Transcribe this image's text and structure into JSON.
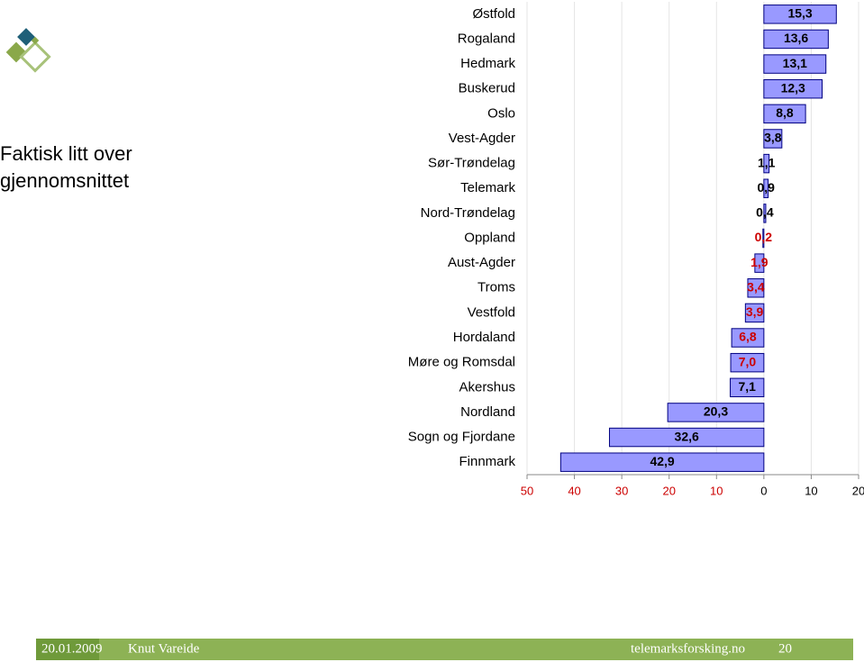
{
  "slide": {
    "heading": [
      "Faktisk litt over",
      "gjennomsnittet"
    ],
    "footer": {
      "date": "20.01.2009",
      "author": "Knut Vareide",
      "site": "telemarksforsking.no",
      "page": "20"
    }
  },
  "chart_data": {
    "type": "hbar",
    "categories": [
      "Østfold",
      "Rogaland",
      "Hedmark",
      "Buskerud",
      "Oslo",
      "Vest-Agder",
      "Sør-Trøndelag",
      "Telemark",
      "Nord-Trøndelag",
      "Oppland",
      "Aust-Agder",
      "Troms",
      "Vestfold",
      "Hordaland",
      "Møre og Romsdal",
      "Akershus",
      "Nordland",
      "Sogn og Fjordane",
      "Finnmark"
    ],
    "values": [
      15.3,
      13.6,
      13.1,
      12.3,
      8.8,
      3.8,
      1.1,
      0.9,
      0.4,
      -0.2,
      -1.9,
      -3.4,
      -3.9,
      -6.8,
      -7.0,
      -7.1,
      -20.3,
      -32.6,
      -42.9
    ],
    "value_labels": [
      "15,3",
      "13,6",
      "13,1",
      "12,3",
      "8,8",
      "3,8",
      "1,1",
      "0,9",
      "0,4",
      "0,2",
      "1,9",
      "3,4",
      "3,9",
      "6,8",
      "7,0",
      "7,1",
      "20,3",
      "32,6",
      "42,9"
    ],
    "value_label_colors": [
      "#000",
      "#000",
      "#000",
      "#000",
      "#000",
      "#000",
      "#000",
      "#000",
      "#000",
      "#cc0000",
      "#cc0000",
      "#cc0000",
      "#cc0000",
      "#cc0000",
      "#cc0000",
      "#000",
      "#000",
      "#000",
      "#000"
    ],
    "color": "#9999ff",
    "edge_color": "#000080",
    "xlim": [
      -50,
      20
    ],
    "xticks": [
      {
        "value": -50,
        "label": "50"
      },
      {
        "value": -40,
        "label": "40"
      },
      {
        "value": -30,
        "label": "30"
      },
      {
        "value": -20,
        "label": "20"
      },
      {
        "value": -10,
        "label": "10"
      },
      0,
      10,
      20
    ],
    "negative_tick_color": "#cc0000",
    "grid": true
  }
}
